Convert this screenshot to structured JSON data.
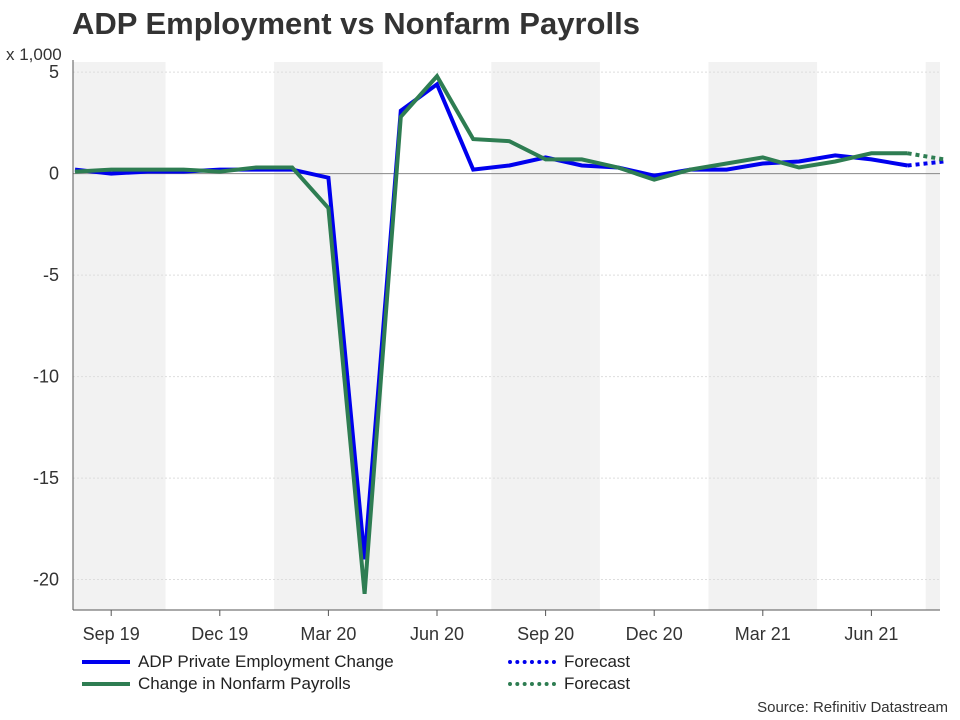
{
  "header": {
    "title": "ADP Employment vs Nonfarm Payrolls",
    "unit": "x 1,000"
  },
  "legend": {
    "adp_label": "ADP Private Employment Change",
    "adp_forecast_label": "Forecast",
    "nfp_label": "Change in Nonfarm Payrolls",
    "nfp_forecast_label": "Forecast"
  },
  "source": "Source: Refinitiv Datastream",
  "colors": {
    "adp": "#0000ee",
    "nfp": "#2e7d52",
    "band": "#f2f2f2",
    "grid": "#dddddd",
    "zero": "#888888"
  },
  "chart_data": {
    "type": "line",
    "title": "ADP Employment vs Nonfarm Payrolls",
    "ylabel": "x 1,000",
    "xlabel": "",
    "ylim": [
      -21.5,
      5.5
    ],
    "yticks": [
      5,
      0,
      -5,
      -10,
      -15,
      -20
    ],
    "x_tick_labels": [
      "Sep 19",
      "Dec 19",
      "Mar 20",
      "Jun 20",
      "Sep 20",
      "Dec 20",
      "Mar 21",
      "Jun 21"
    ],
    "x": [
      "Aug 19",
      "Sep 19",
      "Oct 19",
      "Nov 19",
      "Dec 19",
      "Jan 20",
      "Feb 20",
      "Mar 20",
      "Apr 20",
      "May 20",
      "Jun 20",
      "Jul 20",
      "Aug 20",
      "Sep 20",
      "Oct 20",
      "Nov 20",
      "Dec 20",
      "Jan 21",
      "Feb 21",
      "Mar 21",
      "Apr 21",
      "May 21",
      "Jun 21",
      "Jul 21"
    ],
    "series": [
      {
        "name": "ADP Private Employment Change",
        "values": [
          0.2,
          0.0,
          0.1,
          0.1,
          0.2,
          0.2,
          0.2,
          -0.2,
          -19.0,
          3.1,
          4.4,
          0.2,
          0.4,
          0.8,
          0.4,
          0.3,
          -0.1,
          0.2,
          0.2,
          0.5,
          0.6,
          0.9,
          0.7,
          0.4
        ],
        "forecast": {
          "from": "Jul 21",
          "to": "Aug 21",
          "values": [
            0.4,
            0.6
          ]
        }
      },
      {
        "name": "Change in Nonfarm Payrolls",
        "values": [
          0.1,
          0.2,
          0.2,
          0.2,
          0.1,
          0.3,
          0.3,
          -1.7,
          -20.7,
          2.8,
          4.8,
          1.7,
          1.6,
          0.7,
          0.7,
          0.3,
          -0.3,
          0.2,
          0.5,
          0.8,
          0.3,
          0.6,
          1.0,
          1.0
        ],
        "forecast": {
          "from": "Jul 21",
          "to": "Aug 21",
          "values": [
            1.0,
            0.7
          ]
        }
      }
    ],
    "grid": true,
    "legend_position": "bottom"
  }
}
